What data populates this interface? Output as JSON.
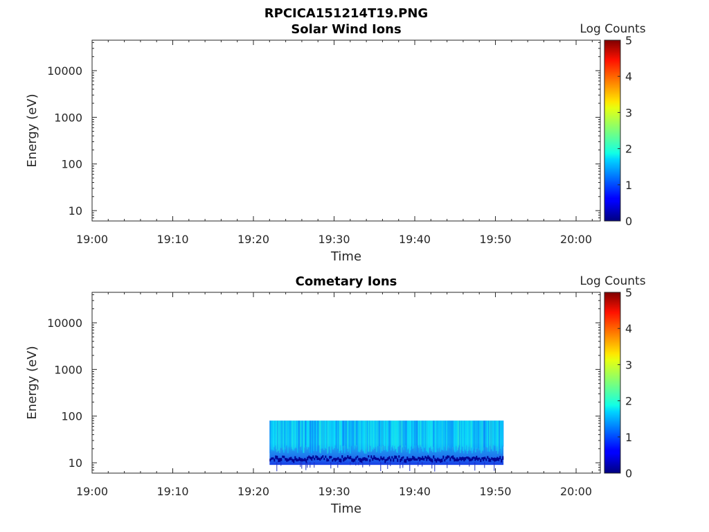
{
  "figure": {
    "title": "RPCICA151214T19.PNG"
  },
  "chart_data": [
    {
      "type": "heatmap",
      "title": "Solar Wind Ions",
      "xlabel": "Time",
      "ylabel": "Energy (eV)",
      "x_tick_labels": [
        "19:00",
        "19:10",
        "19:20",
        "19:30",
        "19:40",
        "19:50",
        "20:00"
      ],
      "x_range": [
        "19:00",
        "20:03"
      ],
      "y_scale": "log",
      "y_ticks": [
        10,
        100,
        1000,
        10000
      ],
      "y_tick_labels": [
        "10",
        "100",
        "1000",
        "10000"
      ],
      "y_range": [
        6,
        45000
      ],
      "colorbar": {
        "label": "Log Counts",
        "range": [
          0,
          5
        ],
        "ticks": [
          "0",
          "1",
          "2",
          "3",
          "4",
          "5"
        ],
        "colormap": "jet"
      },
      "data_regions": []
    },
    {
      "type": "heatmap",
      "title": "Cometary Ions",
      "xlabel": "Time",
      "ylabel": "Energy (eV)",
      "x_tick_labels": [
        "19:00",
        "19:10",
        "19:20",
        "19:30",
        "19:40",
        "19:50",
        "20:00"
      ],
      "x_range": [
        "19:00",
        "20:03"
      ],
      "y_scale": "log",
      "y_ticks": [
        10,
        100,
        1000,
        10000
      ],
      "y_tick_labels": [
        "10",
        "100",
        "1000",
        "10000"
      ],
      "y_range": [
        6,
        45000
      ],
      "colorbar": {
        "label": "Log Counts",
        "range": [
          0,
          5
        ],
        "ticks": [
          "0",
          "1",
          "2",
          "3",
          "4",
          "5"
        ],
        "colormap": "jet"
      },
      "data_regions": [
        {
          "t_start": "19:22",
          "t_end": "19:51",
          "energy_low": 9,
          "energy_high": 80,
          "typical_log_counts": 1.6
        }
      ]
    }
  ]
}
